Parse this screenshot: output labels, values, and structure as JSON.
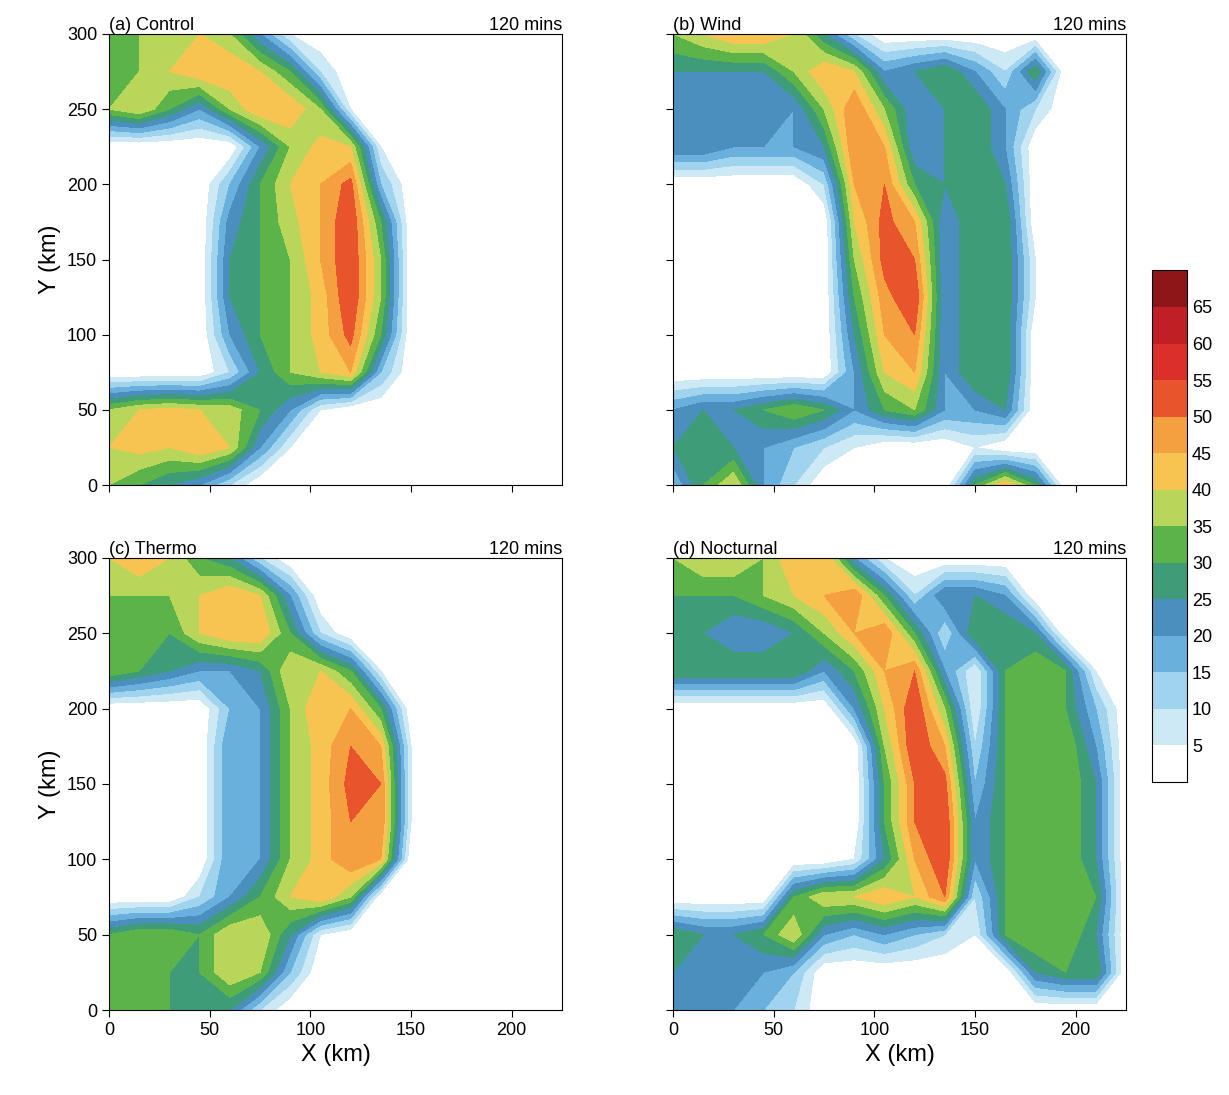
{
  "chart_data": [
    {
      "type": "contour",
      "title": "(a) Control",
      "subtitle": "120 mins",
      "y_label": "Y (km)",
      "tick_labels": "y",
      "xlim": [
        0,
        225
      ],
      "ylim": [
        0,
        300
      ],
      "xticks": [
        0,
        50,
        100,
        150,
        200
      ],
      "yticks": [
        0,
        50,
        100,
        150,
        200,
        250,
        300
      ],
      "x": [
        0,
        15,
        30,
        45,
        60,
        75,
        90,
        105,
        120,
        135,
        150,
        165,
        180,
        195,
        210,
        225
      ],
      "y": [
        0,
        25,
        50,
        75,
        100,
        125,
        150,
        175,
        200,
        225,
        250,
        275,
        300
      ],
      "values": [
        [
          35,
          30,
          25,
          20,
          10,
          0,
          0,
          0,
          0,
          0,
          0,
          0,
          0,
          0,
          0,
          0
        ],
        [
          40,
          42,
          40,
          45,
          40,
          20,
          5,
          0,
          0,
          0,
          0,
          0,
          0,
          0,
          0,
          0
        ],
        [
          35,
          40,
          42,
          40,
          38,
          30,
          20,
          5,
          0,
          0,
          0,
          0,
          0,
          0,
          0,
          0
        ],
        [
          0,
          0,
          0,
          0,
          10,
          25,
          35,
          40,
          45,
          15,
          0,
          0,
          0,
          0,
          0,
          0
        ],
        [
          0,
          0,
          0,
          0,
          20,
          30,
          35,
          42,
          52,
          30,
          0,
          0,
          0,
          0,
          0,
          0
        ],
        [
          0,
          0,
          0,
          0,
          25,
          30,
          35,
          42,
          55,
          35,
          0,
          0,
          0,
          0,
          0,
          0
        ],
        [
          0,
          0,
          0,
          0,
          25,
          30,
          35,
          45,
          55,
          35,
          0,
          0,
          0,
          0,
          0,
          0
        ],
        [
          0,
          0,
          0,
          0,
          22,
          30,
          38,
          45,
          55,
          30,
          0,
          0,
          0,
          0,
          0,
          0
        ],
        [
          0,
          0,
          0,
          0,
          15,
          30,
          40,
          45,
          52,
          15,
          0,
          0,
          0,
          0,
          0,
          0
        ],
        [
          0,
          0,
          0,
          0,
          0,
          20,
          35,
          42,
          40,
          5,
          0,
          0,
          0,
          0,
          0,
          0
        ],
        [
          35,
          40,
          30,
          20,
          35,
          45,
          45,
          35,
          5,
          0,
          0,
          0,
          0,
          0,
          0,
          0
        ],
        [
          30,
          35,
          40,
          45,
          45,
          40,
          30,
          10,
          0,
          0,
          0,
          0,
          0,
          0,
          0,
          0
        ],
        [
          30,
          35,
          40,
          40,
          35,
          20,
          5,
          0,
          0,
          0,
          0,
          0,
          0,
          0,
          0,
          0
        ]
      ]
    },
    {
      "type": "contour",
      "title": "(b) Wind",
      "subtitle": "120 mins",
      "tick_labels": false,
      "xlim": [
        0,
        225
      ],
      "ylim": [
        0,
        300
      ],
      "xticks": [
        0,
        50,
        100,
        150,
        200
      ],
      "yticks": [
        0,
        50,
        100,
        150,
        200,
        250,
        300
      ],
      "x": [
        0,
        15,
        30,
        45,
        60,
        75,
        90,
        105,
        120,
        135,
        150,
        165,
        180,
        195,
        210,
        225
      ],
      "y": [
        0,
        25,
        50,
        75,
        100,
        125,
        150,
        175,
        200,
        225,
        250,
        275,
        300
      ],
      "values": [
        [
          15,
          30,
          40,
          20,
          10,
          0,
          0,
          0,
          0,
          0,
          30,
          45,
          30,
          0,
          0,
          0
        ],
        [
          25,
          30,
          25,
          20,
          15,
          10,
          5,
          0,
          0,
          0,
          5,
          0,
          0,
          0,
          0,
          0
        ],
        [
          20,
          25,
          25,
          30,
          35,
          30,
          20,
          30,
          35,
          20,
          20,
          25,
          0,
          0,
          0,
          0
        ],
        [
          0,
          0,
          0,
          0,
          0,
          0,
          20,
          40,
          45,
          20,
          30,
          30,
          0,
          0,
          0,
          0
        ],
        [
          0,
          0,
          0,
          0,
          0,
          0,
          25,
          45,
          50,
          20,
          30,
          30,
          0,
          0,
          0,
          0
        ],
        [
          0,
          0,
          0,
          0,
          0,
          0,
          30,
          48,
          55,
          20,
          30,
          30,
          5,
          0,
          0,
          0
        ],
        [
          0,
          0,
          0,
          0,
          0,
          0,
          35,
          52,
          50,
          20,
          30,
          30,
          5,
          0,
          0,
          0
        ],
        [
          0,
          0,
          0,
          0,
          0,
          0,
          40,
          52,
          45,
          20,
          30,
          30,
          0,
          0,
          0,
          0
        ],
        [
          0,
          0,
          0,
          0,
          0,
          10,
          45,
          50,
          30,
          25,
          30,
          25,
          0,
          0,
          0,
          0
        ],
        [
          25,
          25,
          20,
          20,
          20,
          25,
          50,
          45,
          20,
          25,
          30,
          20,
          0,
          0,
          0,
          0
        ],
        [
          20,
          20,
          25,
          25,
          20,
          35,
          50,
          35,
          20,
          25,
          30,
          20,
          10,
          0,
          0,
          0
        ],
        [
          25,
          25,
          25,
          25,
          35,
          45,
          40,
          20,
          25,
          30,
          20,
          10,
          30,
          0,
          0,
          0
        ],
        [
          35,
          40,
          45,
          45,
          40,
          25,
          10,
          0,
          0,
          0,
          0,
          0,
          0,
          0,
          0,
          0
        ]
      ]
    },
    {
      "type": "contour",
      "title": "(c) Thermo",
      "subtitle": "120 mins",
      "x_label": "X (km)",
      "y_label": "Y (km)",
      "xlim": [
        0,
        225
      ],
      "ylim": [
        0,
        300
      ],
      "xticks": [
        0,
        50,
        100,
        150,
        200
      ],
      "yticks": [
        0,
        50,
        100,
        150,
        200,
        250,
        300
      ],
      "x": [
        0,
        15,
        30,
        45,
        60,
        75,
        90,
        105,
        120,
        135,
        150,
        165,
        180,
        195,
        210,
        225
      ],
      "y": [
        0,
        25,
        50,
        75,
        100,
        125,
        150,
        175,
        200,
        225,
        250,
        275,
        300
      ],
      "values": [
        [
          35,
          35,
          30,
          25,
          25,
          10,
          0,
          0,
          0,
          0,
          0,
          0,
          0,
          0,
          0,
          0
        ],
        [
          35,
          35,
          30,
          30,
          40,
          35,
          15,
          0,
          0,
          0,
          0,
          0,
          0,
          0,
          0,
          0
        ],
        [
          30,
          35,
          35,
          30,
          40,
          40,
          25,
          5,
          0,
          0,
          0,
          0,
          0,
          0,
          0,
          0
        ],
        [
          0,
          0,
          0,
          10,
          20,
          30,
          40,
          45,
          35,
          0,
          0,
          0,
          0,
          0,
          0,
          0
        ],
        [
          0,
          0,
          0,
          0,
          20,
          20,
          35,
          42,
          50,
          45,
          0,
          0,
          0,
          0,
          0,
          0
        ],
        [
          0,
          0,
          0,
          0,
          20,
          20,
          35,
          42,
          50,
          50,
          5,
          0,
          0,
          0,
          0,
          0
        ],
        [
          0,
          0,
          0,
          0,
          20,
          20,
          35,
          42,
          52,
          50,
          5,
          0,
          0,
          0,
          0,
          0
        ],
        [
          0,
          0,
          0,
          0,
          20,
          20,
          35,
          42,
          50,
          45,
          5,
          0,
          0,
          0,
          0,
          0
        ],
        [
          0,
          0,
          0,
          0,
          15,
          20,
          35,
          45,
          45,
          30,
          0,
          0,
          0,
          0,
          0,
          0
        ],
        [
          35,
          30,
          25,
          20,
          20,
          25,
          40,
          40,
          30,
          5,
          0,
          0,
          0,
          0,
          0,
          0
        ],
        [
          35,
          35,
          30,
          40,
          45,
          45,
          30,
          10,
          0,
          0,
          0,
          0,
          0,
          0,
          0,
          0
        ],
        [
          35,
          35,
          35,
          40,
          45,
          40,
          20,
          0,
          0,
          0,
          0,
          0,
          0,
          0,
          0,
          0
        ],
        [
          40,
          45,
          40,
          30,
          25,
          10,
          0,
          0,
          0,
          0,
          0,
          0,
          0,
          0,
          0,
          0
        ]
      ]
    },
    {
      "type": "contour",
      "title": "(d) Nocturnal",
      "subtitle": "120 mins",
      "x_label": "X (km)",
      "tick_labels": "x",
      "xlim": [
        0,
        225
      ],
      "ylim": [
        0,
        300
      ],
      "xticks": [
        0,
        50,
        100,
        150,
        200
      ],
      "yticks": [
        0,
        50,
        100,
        150,
        200,
        250,
        300
      ],
      "x": [
        0,
        15,
        30,
        45,
        60,
        75,
        90,
        105,
        120,
        135,
        150,
        165,
        180,
        195,
        210,
        225
      ],
      "y": [
        0,
        25,
        50,
        75,
        100,
        125,
        150,
        175,
        200,
        225,
        250,
        275,
        300
      ],
      "values": [
        [
          20,
          25,
          20,
          15,
          10,
          0,
          0,
          0,
          0,
          0,
          0,
          0,
          0,
          0,
          0,
          0
        ],
        [
          25,
          20,
          25,
          20,
          15,
          0,
          0,
          0,
          0,
          0,
          0,
          0,
          25,
          30,
          30,
          0
        ],
        [
          30,
          25,
          25,
          30,
          40,
          20,
          15,
          20,
          15,
          10,
          5,
          30,
          35,
          35,
          25,
          0
        ],
        [
          0,
          0,
          0,
          0,
          30,
          40,
          40,
          45,
          40,
          50,
          10,
          30,
          35,
          35,
          30,
          0
        ],
        [
          0,
          0,
          0,
          0,
          0,
          0,
          5,
          25,
          45,
          55,
          20,
          30,
          35,
          35,
          25,
          0
        ],
        [
          0,
          0,
          0,
          0,
          0,
          0,
          0,
          30,
          50,
          55,
          20,
          30,
          35,
          35,
          25,
          0
        ],
        [
          0,
          0,
          0,
          0,
          0,
          0,
          0,
          30,
          50,
          52,
          15,
          30,
          35,
          35,
          25,
          0
        ],
        [
          0,
          0,
          0,
          0,
          0,
          0,
          0,
          35,
          55,
          45,
          10,
          30,
          35,
          35,
          20,
          0
        ],
        [
          0,
          0,
          0,
          0,
          0,
          0,
          20,
          40,
          55,
          35,
          5,
          30,
          35,
          30,
          15,
          0
        ],
        [
          30,
          30,
          30,
          30,
          30,
          20,
          30,
          45,
          50,
          20,
          5,
          30,
          35,
          30,
          5,
          0
        ],
        [
          25,
          25,
          20,
          20,
          25,
          35,
          45,
          50,
          30,
          10,
          30,
          30,
          25,
          0,
          0,
          0
        ],
        [
          30,
          30,
          30,
          35,
          40,
          45,
          50,
          30,
          10,
          25,
          25,
          20,
          0,
          0,
          0,
          0
        ],
        [
          35,
          40,
          40,
          35,
          45,
          45,
          20,
          5,
          0,
          0,
          0,
          0,
          0,
          0,
          0,
          0
        ]
      ]
    }
  ],
  "colorbar": {
    "levels": [
      0,
      5,
      10,
      15,
      20,
      25,
      30,
      35,
      40,
      45,
      50,
      55,
      60,
      65,
      70
    ],
    "range": [
      0,
      70
    ],
    "ticks": [
      5,
      10,
      15,
      20,
      25,
      30,
      35,
      40,
      45,
      50,
      55,
      60,
      65
    ],
    "colors": [
      "#ffffff",
      "#cde9f5",
      "#9fd3ee",
      "#6ab0dc",
      "#4a8fbd",
      "#3e9c78",
      "#5cb34a",
      "#b8d65a",
      "#f7c451",
      "#f5a040",
      "#e8542b",
      "#d9302a",
      "#c01f26",
      "#8e1619"
    ]
  }
}
